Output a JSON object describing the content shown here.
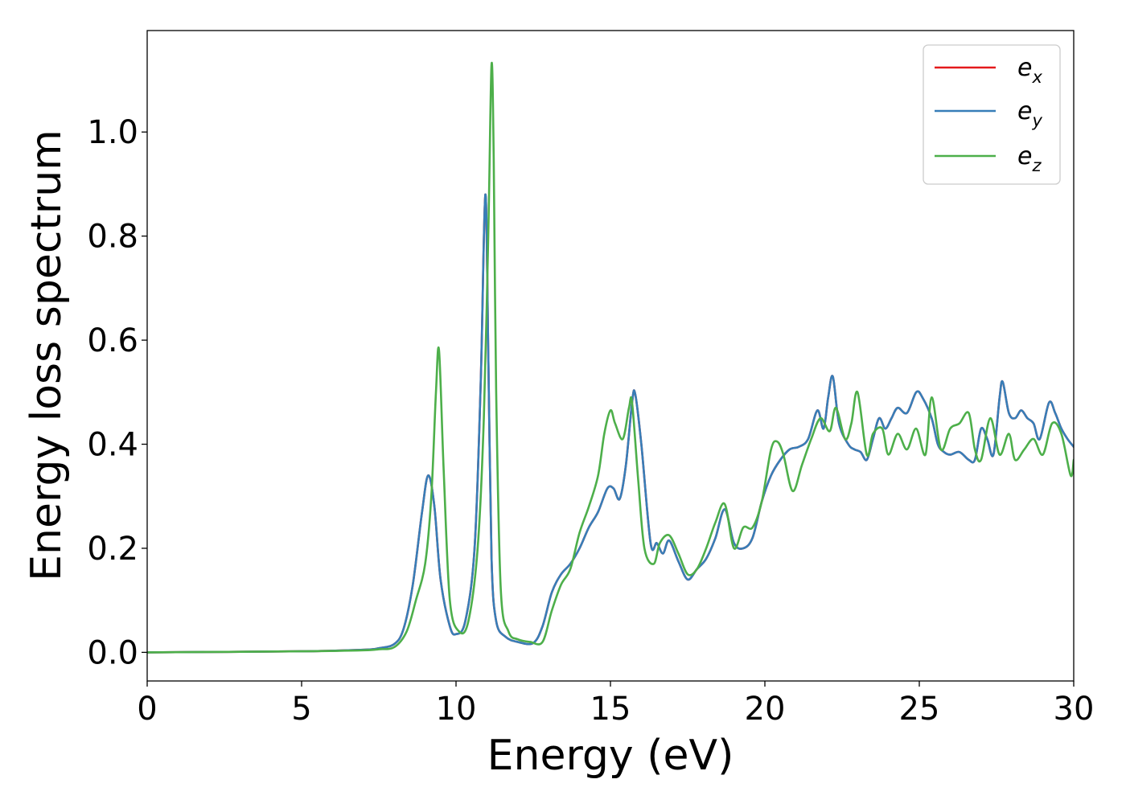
{
  "chart_data": {
    "type": "line",
    "xlabel": "Energy (eV)",
    "ylabel": "Energy loss spectrum",
    "xlim": [
      0,
      30
    ],
    "ylim": [
      -0.055,
      1.195
    ],
    "xticks": [
      0,
      5,
      10,
      15,
      20,
      25,
      30
    ],
    "xtick_labels": [
      "0",
      "5",
      "10",
      "15",
      "20",
      "25",
      "30"
    ],
    "yticks": [
      0.0,
      0.2,
      0.4,
      0.6,
      0.8,
      1.0
    ],
    "ytick_labels": [
      "0.0",
      "0.2",
      "0.4",
      "0.6",
      "0.8",
      "1.0"
    ],
    "grid": false,
    "legend_position": "top-right",
    "series": [
      {
        "name": "e_x",
        "legend_base": "e",
        "legend_sub": "x",
        "color": "#e41a1c",
        "x": [
          0,
          5,
          7,
          7.5,
          8,
          8.3,
          8.6,
          8.9,
          9.1,
          9.3,
          9.5,
          9.8,
          10.0,
          10.3,
          10.6,
          10.8,
          10.95,
          11.05,
          11.15,
          11.3,
          11.6,
          12.0,
          12.5,
          12.8,
          13.1,
          13.4,
          13.7,
          14.0,
          14.3,
          14.6,
          14.9,
          15.1,
          15.3,
          15.5,
          15.7,
          15.8,
          16.0,
          16.3,
          16.5,
          16.7,
          16.9,
          17.2,
          17.5,
          17.8,
          18.1,
          18.4,
          18.7,
          19.0,
          19.3,
          19.6,
          19.9,
          20.2,
          20.5,
          20.8,
          21.1,
          21.4,
          21.7,
          21.9,
          22.05,
          22.2,
          22.4,
          22.7,
          22.9,
          23.1,
          23.3,
          23.5,
          23.7,
          23.9,
          24.1,
          24.3,
          24.6,
          24.9,
          25.1,
          25.4,
          25.6,
          25.8,
          26.0,
          26.3,
          26.6,
          26.8,
          27.0,
          27.2,
          27.4,
          27.6,
          27.7,
          27.9,
          28.1,
          28.3,
          28.5,
          28.7,
          28.9,
          29.2,
          29.4,
          29.6,
          29.8,
          30.0
        ],
        "y": [
          0.0,
          0.002,
          0.005,
          0.008,
          0.016,
          0.045,
          0.13,
          0.27,
          0.34,
          0.28,
          0.14,
          0.05,
          0.035,
          0.06,
          0.2,
          0.52,
          0.88,
          0.55,
          0.18,
          0.06,
          0.03,
          0.02,
          0.018,
          0.05,
          0.115,
          0.15,
          0.17,
          0.2,
          0.24,
          0.27,
          0.315,
          0.315,
          0.295,
          0.36,
          0.48,
          0.497,
          0.4,
          0.21,
          0.21,
          0.19,
          0.215,
          0.175,
          0.14,
          0.16,
          0.18,
          0.22,
          0.275,
          0.21,
          0.2,
          0.22,
          0.29,
          0.34,
          0.37,
          0.39,
          0.395,
          0.41,
          0.465,
          0.43,
          0.49,
          0.53,
          0.44,
          0.4,
          0.39,
          0.385,
          0.37,
          0.41,
          0.45,
          0.43,
          0.45,
          0.47,
          0.46,
          0.5,
          0.49,
          0.45,
          0.4,
          0.385,
          0.38,
          0.385,
          0.37,
          0.37,
          0.43,
          0.41,
          0.38,
          0.49,
          0.52,
          0.46,
          0.45,
          0.465,
          0.45,
          0.44,
          0.41,
          0.48,
          0.46,
          0.43,
          0.41,
          0.395
        ]
      },
      {
        "name": "e_y",
        "legend_base": "e",
        "legend_sub": "y",
        "color": "#377eb8",
        "x": [
          0,
          5,
          7,
          7.5,
          8,
          8.3,
          8.6,
          8.9,
          9.1,
          9.3,
          9.5,
          9.8,
          10.0,
          10.3,
          10.6,
          10.8,
          10.95,
          11.05,
          11.15,
          11.3,
          11.6,
          12.0,
          12.5,
          12.8,
          13.1,
          13.4,
          13.7,
          14.0,
          14.3,
          14.6,
          14.9,
          15.1,
          15.3,
          15.5,
          15.7,
          15.8,
          16.0,
          16.3,
          16.5,
          16.7,
          16.9,
          17.2,
          17.5,
          17.8,
          18.1,
          18.4,
          18.7,
          19.0,
          19.3,
          19.6,
          19.9,
          20.2,
          20.5,
          20.8,
          21.1,
          21.4,
          21.7,
          21.9,
          22.05,
          22.2,
          22.4,
          22.7,
          22.9,
          23.1,
          23.3,
          23.5,
          23.7,
          23.9,
          24.1,
          24.3,
          24.6,
          24.9,
          25.1,
          25.4,
          25.6,
          25.8,
          26.0,
          26.3,
          26.6,
          26.8,
          27.0,
          27.2,
          27.4,
          27.6,
          27.7,
          27.9,
          28.1,
          28.3,
          28.5,
          28.7,
          28.9,
          29.2,
          29.4,
          29.6,
          29.8,
          30.0
        ],
        "y": [
          0.0,
          0.002,
          0.005,
          0.008,
          0.016,
          0.045,
          0.13,
          0.27,
          0.34,
          0.28,
          0.14,
          0.05,
          0.035,
          0.06,
          0.2,
          0.52,
          0.88,
          0.55,
          0.18,
          0.06,
          0.03,
          0.02,
          0.018,
          0.05,
          0.115,
          0.15,
          0.17,
          0.2,
          0.24,
          0.27,
          0.315,
          0.315,
          0.295,
          0.36,
          0.48,
          0.497,
          0.4,
          0.21,
          0.21,
          0.19,
          0.215,
          0.175,
          0.14,
          0.16,
          0.18,
          0.22,
          0.275,
          0.21,
          0.2,
          0.22,
          0.29,
          0.34,
          0.37,
          0.39,
          0.395,
          0.41,
          0.465,
          0.43,
          0.49,
          0.53,
          0.44,
          0.4,
          0.39,
          0.385,
          0.37,
          0.41,
          0.45,
          0.43,
          0.45,
          0.47,
          0.46,
          0.5,
          0.49,
          0.45,
          0.4,
          0.385,
          0.38,
          0.385,
          0.37,
          0.37,
          0.43,
          0.41,
          0.38,
          0.49,
          0.52,
          0.46,
          0.45,
          0.465,
          0.45,
          0.44,
          0.41,
          0.48,
          0.46,
          0.43,
          0.41,
          0.395
        ]
      },
      {
        "name": "e_z",
        "legend_base": "e",
        "legend_sub": "z",
        "color": "#4daf4a",
        "x": [
          0,
          5,
          7,
          7.5,
          8,
          8.4,
          8.7,
          9.0,
          9.2,
          9.35,
          9.45,
          9.6,
          9.8,
          10.1,
          10.4,
          10.7,
          10.9,
          11.05,
          11.15,
          11.22,
          11.3,
          11.45,
          11.7,
          12.0,
          12.4,
          12.8,
          13.1,
          13.4,
          13.7,
          14.0,
          14.3,
          14.6,
          14.8,
          15.0,
          15.15,
          15.4,
          15.6,
          15.7,
          15.9,
          16.1,
          16.4,
          16.6,
          16.9,
          17.2,
          17.5,
          17.8,
          18.1,
          18.4,
          18.7,
          19.0,
          19.3,
          19.6,
          19.9,
          20.2,
          20.4,
          20.6,
          20.9,
          21.2,
          21.5,
          21.8,
          22.1,
          22.3,
          22.6,
          22.8,
          23.0,
          23.3,
          23.5,
          23.8,
          24.0,
          24.3,
          24.6,
          24.9,
          25.2,
          25.4,
          25.7,
          26.0,
          26.3,
          26.6,
          26.8,
          27.0,
          27.3,
          27.6,
          27.9,
          28.1,
          28.4,
          28.7,
          29.0,
          29.3,
          29.6,
          29.9,
          30.0
        ],
        "y": [
          0.0,
          0.002,
          0.004,
          0.006,
          0.01,
          0.04,
          0.1,
          0.17,
          0.3,
          0.5,
          0.58,
          0.35,
          0.1,
          0.04,
          0.06,
          0.2,
          0.45,
          0.82,
          1.13,
          0.95,
          0.5,
          0.12,
          0.04,
          0.025,
          0.02,
          0.02,
          0.08,
          0.13,
          0.16,
          0.23,
          0.28,
          0.34,
          0.42,
          0.465,
          0.44,
          0.41,
          0.47,
          0.48,
          0.33,
          0.2,
          0.17,
          0.21,
          0.225,
          0.19,
          0.15,
          0.16,
          0.2,
          0.25,
          0.285,
          0.2,
          0.24,
          0.24,
          0.29,
          0.39,
          0.405,
          0.38,
          0.31,
          0.36,
          0.41,
          0.45,
          0.425,
          0.47,
          0.41,
          0.44,
          0.5,
          0.38,
          0.42,
          0.43,
          0.38,
          0.42,
          0.39,
          0.43,
          0.38,
          0.49,
          0.39,
          0.43,
          0.44,
          0.46,
          0.39,
          0.37,
          0.45,
          0.38,
          0.42,
          0.37,
          0.39,
          0.41,
          0.38,
          0.44,
          0.42,
          0.34,
          0.37
        ]
      }
    ]
  }
}
